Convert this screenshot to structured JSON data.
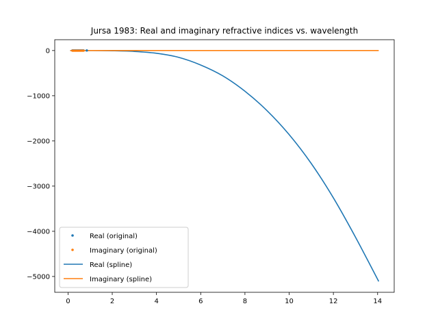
{
  "chart_data": {
    "type": "line",
    "title": "Jursa 1983: Real and imaginary refractive indices vs. wavelength",
    "xlabel": "",
    "ylabel": "",
    "xlim": [
      -0.6,
      14.75
    ],
    "ylim": [
      -5350,
      240
    ],
    "xticks": [
      0,
      2,
      4,
      6,
      8,
      10,
      12,
      14
    ],
    "xtick_labels": [
      "0",
      "2",
      "4",
      "6",
      "8",
      "10",
      "12",
      "14"
    ],
    "yticks": [
      0,
      -1000,
      -2000,
      -3000,
      -4000,
      -5000
    ],
    "ytick_labels": [
      "0",
      "−1000",
      "−2000",
      "−3000",
      "−4000",
      "−5000"
    ],
    "grid": false,
    "legend_position": "lower-left",
    "legend": [
      {
        "label": "Real (original)",
        "marker": "dot",
        "color": "#1f77b4"
      },
      {
        "label": "Imaginary (original)",
        "marker": "dot",
        "color": "#ff7f0e"
      },
      {
        "label": "Real (spline)",
        "marker": "line",
        "color": "#1f77b4"
      },
      {
        "label": "Imaginary (spline)",
        "marker": "line",
        "color": "#ff7f0e"
      }
    ],
    "series": [
      {
        "name": "Real (original)",
        "kind": "scatter",
        "color": "#1f77b4",
        "x": [
          0.2,
          0.25,
          0.3,
          0.35,
          0.4,
          0.45,
          0.5,
          0.55,
          0.6,
          0.65,
          0.7,
          0.85
        ],
        "y": [
          1.5,
          1.5,
          1.5,
          1.5,
          1.5,
          1.5,
          1.5,
          1.5,
          1.5,
          1.5,
          1.5,
          1.5
        ]
      },
      {
        "name": "Imaginary (original)",
        "kind": "scatter",
        "color": "#ff7f0e",
        "x": [
          0.2,
          0.25,
          0.3,
          0.35,
          0.4,
          0.45,
          0.5,
          0.55,
          0.6,
          0.65,
          0.7
        ],
        "y": [
          -3,
          -3,
          -3,
          -3,
          -3,
          -3,
          -3,
          -3,
          -3,
          -3,
          -3
        ]
      },
      {
        "name": "Real (spline)",
        "kind": "line",
        "color": "#1f77b4",
        "x": [
          0.1,
          1,
          2,
          3,
          4,
          5,
          6,
          7,
          8,
          9,
          10,
          11,
          12,
          13,
          14.05
        ],
        "y": [
          1,
          0,
          -5,
          -20,
          -60,
          -150,
          -320,
          -560,
          -900,
          -1330,
          -1860,
          -2500,
          -3260,
          -4130,
          -5110
        ]
      },
      {
        "name": "Imaginary (spline)",
        "kind": "line",
        "color": "#ff7f0e",
        "x": [
          0.1,
          14.05
        ],
        "y": [
          0,
          0
        ]
      }
    ]
  }
}
